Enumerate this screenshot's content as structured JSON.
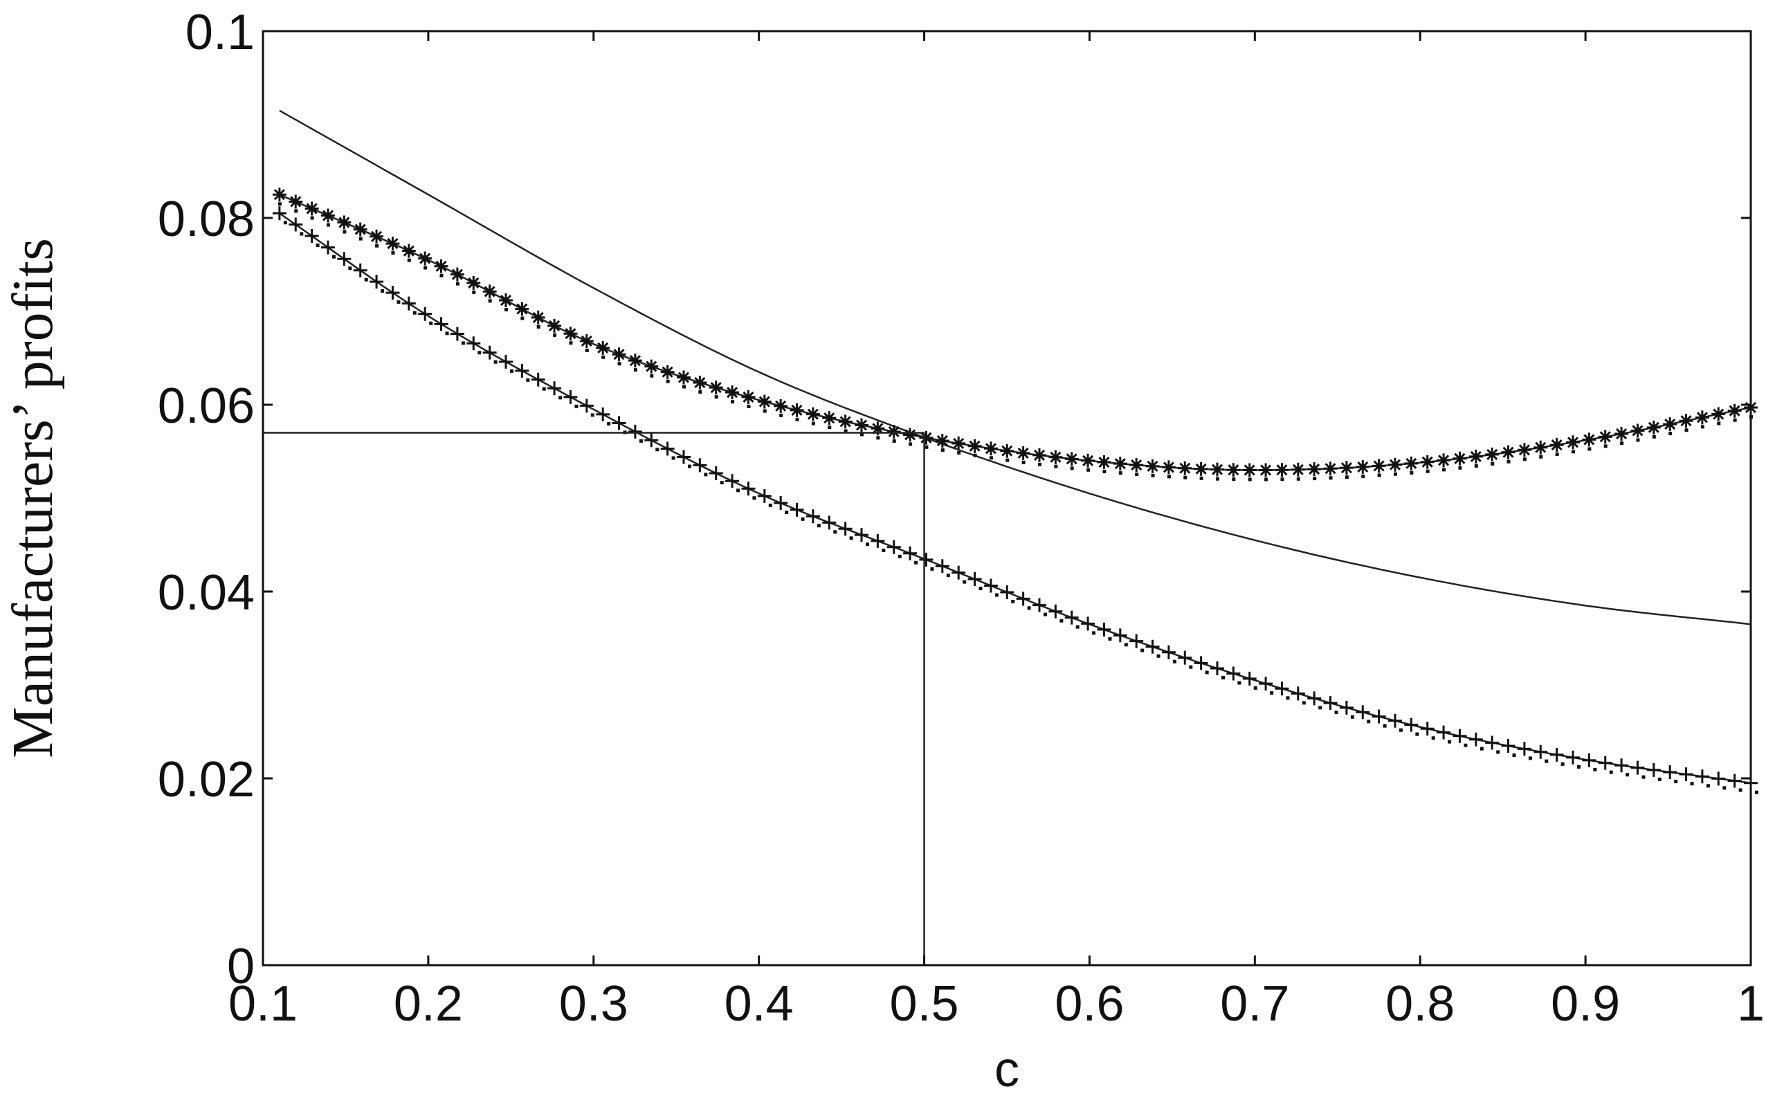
{
  "chart_data": {
    "type": "line",
    "title": "",
    "xlabel": "c",
    "ylabel": "Manufacturers’ profits",
    "xlim": [
      0.1,
      1
    ],
    "ylim": [
      0,
      0.1
    ],
    "grid": false,
    "x_ticks": [
      "0.1",
      "0.2",
      "0.3",
      "0.4",
      "0.5",
      "0.6",
      "0.7",
      "0.8",
      "0.9",
      "1"
    ],
    "y_ticks": [
      "0",
      "0.02",
      "0.04",
      "0.06",
      "0.08",
      "0.1"
    ],
    "x_tick_values": [
      0.1,
      0.2,
      0.3,
      0.4,
      0.5,
      0.6,
      0.7,
      0.8,
      0.9,
      1.0
    ],
    "y_tick_values": [
      0,
      0.02,
      0.04,
      0.06,
      0.08,
      0.1
    ],
    "reference_lines": [
      {
        "orientation": "horizontal",
        "y": 0.057,
        "x_from": 0.1,
        "x_to": 0.5
      },
      {
        "orientation": "vertical",
        "x": 0.5,
        "y_from": 0,
        "y_to": 0.057
      }
    ],
    "series": [
      {
        "style": "solid",
        "x": [
          0.11,
          0.2,
          0.3,
          0.4,
          0.5,
          0.6,
          0.7,
          0.8,
          0.9,
          1.0
        ],
        "y": [
          0.0915,
          0.0825,
          0.0725,
          0.0635,
          0.0565,
          0.0505,
          0.0455,
          0.0415,
          0.0385,
          0.0365
        ]
      },
      {
        "style": "star-markers",
        "x": [
          0.11,
          0.2,
          0.3,
          0.4,
          0.5,
          0.6,
          0.7,
          0.8,
          0.9,
          1.0
        ],
        "y": [
          0.0825,
          0.0755,
          0.0665,
          0.0605,
          0.0565,
          0.054,
          0.053,
          0.0538,
          0.0562,
          0.0597
        ]
      },
      {
        "style": "plus-markers",
        "x": [
          0.11,
          0.2,
          0.3,
          0.4,
          0.5,
          0.6,
          0.7,
          0.8,
          0.9,
          1.0
        ],
        "y": [
          0.0805,
          0.0695,
          0.0595,
          0.0505,
          0.0435,
          0.0365,
          0.0305,
          0.0255,
          0.022,
          0.0195
        ]
      }
    ]
  }
}
